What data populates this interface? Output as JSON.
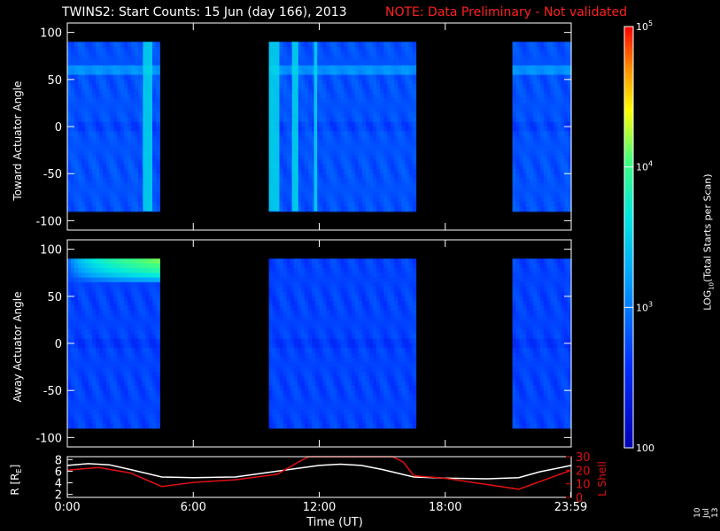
{
  "header": {
    "title": "TWINS2: Start Counts: 15 Jun (day 166), 2013",
    "note": "NOTE: Data Preliminary - Not validated"
  },
  "stamp": "10 Jul 13",
  "colors": {
    "background": "#000000",
    "axis": "#ffffff",
    "note": "#ff2020",
    "lshell": "#e01010",
    "r_line": "#ffffff"
  },
  "colorbar": {
    "label": "LOG10(Total Starts per Scan)",
    "ticks": [
      {
        "value": 100,
        "text": "100",
        "base": "",
        "exp": ""
      },
      {
        "value": 1000,
        "text": "",
        "base": "10",
        "exp": "3"
      },
      {
        "value": 10000,
        "text": "",
        "base": "10",
        "exp": "4"
      },
      {
        "value": 100000,
        "text": "",
        "base": "10",
        "exp": "5"
      }
    ],
    "range": [
      100,
      100000
    ],
    "scale": "log",
    "colormap": "rainbow (blue-cyan-yellow-red)"
  },
  "chart_data": [
    {
      "type": "heatmap",
      "panel": "toward",
      "ylabel": "Toward Actuator Angle",
      "ylim": [
        -110,
        110
      ],
      "yticks": [
        "100",
        "50",
        "0",
        "-50",
        "-100"
      ],
      "ytick_values": [
        100,
        50,
        0,
        -50,
        -100
      ],
      "xlim_hours": [
        0,
        24
      ],
      "angle_range": [
        -90,
        90
      ],
      "data_intervals_hours": [
        [
          0.0,
          4.4
        ],
        [
          9.6,
          16.6
        ],
        [
          21.2,
          24.0
        ]
      ],
      "typical_counts": 600,
      "bright_time_bands_hours": [
        [
          3.6,
          4.05
        ],
        [
          9.6,
          10.1
        ],
        [
          10.7,
          11.0
        ],
        [
          11.75,
          11.9
        ]
      ],
      "bright_angle_band_deg": [
        55,
        65
      ]
    },
    {
      "type": "heatmap",
      "panel": "away",
      "ylabel": "Away Actuator Angle",
      "ylim": [
        -110,
        110
      ],
      "yticks": [
        "100",
        "50",
        "0",
        "-50",
        "-100"
      ],
      "ytick_values": [
        100,
        50,
        0,
        -50,
        -100
      ],
      "xlim_hours": [
        0,
        24
      ],
      "angle_range": [
        -90,
        90
      ],
      "data_intervals_hours": [
        [
          0.0,
          4.4
        ],
        [
          9.6,
          16.6
        ],
        [
          21.2,
          24.0
        ]
      ],
      "typical_counts": 500,
      "hot_region": {
        "hours": [
          0.0,
          4.4
        ],
        "angle_deg": [
          65,
          90
        ],
        "peak_counts": 30000
      }
    },
    {
      "type": "line",
      "panel": "orbit",
      "xlabel": "Time (UT)",
      "xticks": [
        "0:00",
        "6:00",
        "12:00",
        "18:00",
        "23:59"
      ],
      "xtick_values": [
        0,
        6,
        12,
        18,
        23.98
      ],
      "left_axis": {
        "label": "R [RE]",
        "label_base": "R [R",
        "label_sub": "E",
        "label_end": "]",
        "ylim": [
          1.5,
          8.5
        ],
        "yticks": [
          "8",
          "6",
          "4",
          "2"
        ],
        "ytick_values": [
          8,
          6,
          4,
          2
        ]
      },
      "right_axis": {
        "label": "L Shell",
        "ylim": [
          0,
          30
        ],
        "yticks": [
          "30",
          "20",
          "10",
          "0"
        ],
        "ytick_values": [
          30,
          20,
          10,
          0
        ]
      },
      "series": [
        {
          "name": "R [RE]",
          "axis": "left",
          "color": "#ffffff",
          "x": [
            0,
            1,
            2,
            3,
            4.5,
            6,
            8,
            10,
            12,
            13,
            14,
            15,
            16.5,
            18,
            20,
            21.5,
            22.5,
            24
          ],
          "y": [
            7.0,
            7.3,
            7.1,
            6.3,
            5.0,
            4.9,
            5.0,
            6.0,
            7.0,
            7.2,
            7.0,
            6.3,
            5.0,
            4.8,
            4.7,
            4.9,
            5.9,
            7.0
          ]
        },
        {
          "name": "L Shell",
          "axis": "right",
          "color": "#e01010",
          "x": [
            0,
            1.5,
            3,
            4.5,
            6,
            8,
            10,
            11,
            11.5,
            15.5,
            16,
            16.5,
            18,
            21.5,
            24
          ],
          "y": [
            20,
            22,
            18,
            8,
            11,
            13,
            17,
            26,
            30,
            30,
            26,
            16,
            14,
            6,
            20
          ]
        }
      ]
    }
  ]
}
